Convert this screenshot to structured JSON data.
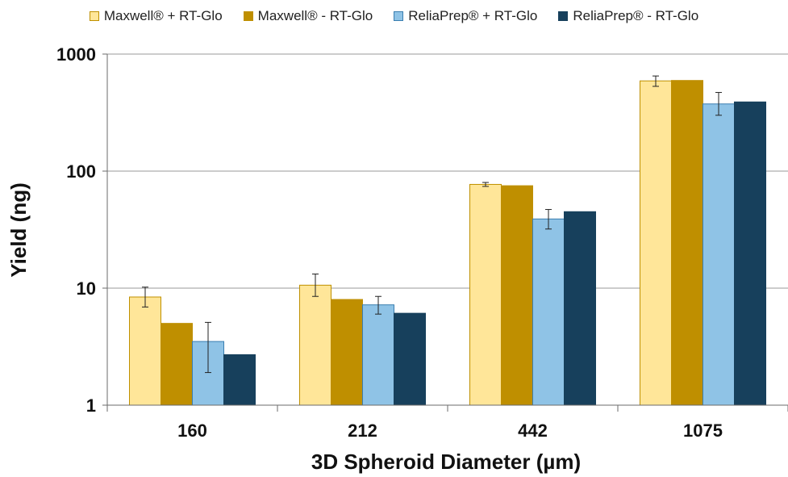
{
  "chart_data": {
    "type": "bar",
    "title": "",
    "xlabel": "3D Spheroid Diameter (µm)",
    "ylabel": "Yield (ng)",
    "yscale": "log",
    "ylim": [
      1,
      1000
    ],
    "yticks": [
      "1",
      "10",
      "100",
      "1000"
    ],
    "categories": [
      "160",
      "212",
      "442",
      "1075"
    ],
    "legend_position": "top",
    "grid": true,
    "series": [
      {
        "name": "Maxwell® + RT-Glo",
        "color": "#FFE699",
        "border": "#BF9000",
        "values": [
          8.4,
          10.6,
          77,
          590
        ],
        "err_low": [
          6.9,
          8.5,
          74,
          530
        ],
        "err_high": [
          10.2,
          13.2,
          80,
          650
        ]
      },
      {
        "name": "Maxwell® - RT-Glo",
        "color": "#BF8F00",
        "border": "#BF8F00",
        "values": [
          5.0,
          8.0,
          75,
          595
        ]
      },
      {
        "name": "ReliaPrep® + RT-Glo",
        "color": "#8FC3E6",
        "border": "#3A7EB0",
        "values": [
          3.5,
          7.2,
          39,
          375
        ],
        "err_low": [
          1.9,
          6.0,
          32,
          300
        ],
        "err_high": [
          5.1,
          8.5,
          47,
          470
        ]
      },
      {
        "name": "ReliaPrep® - RT-Glo",
        "color": "#17405C",
        "border": "#17405C",
        "values": [
          2.7,
          6.1,
          45,
          390
        ]
      }
    ]
  }
}
